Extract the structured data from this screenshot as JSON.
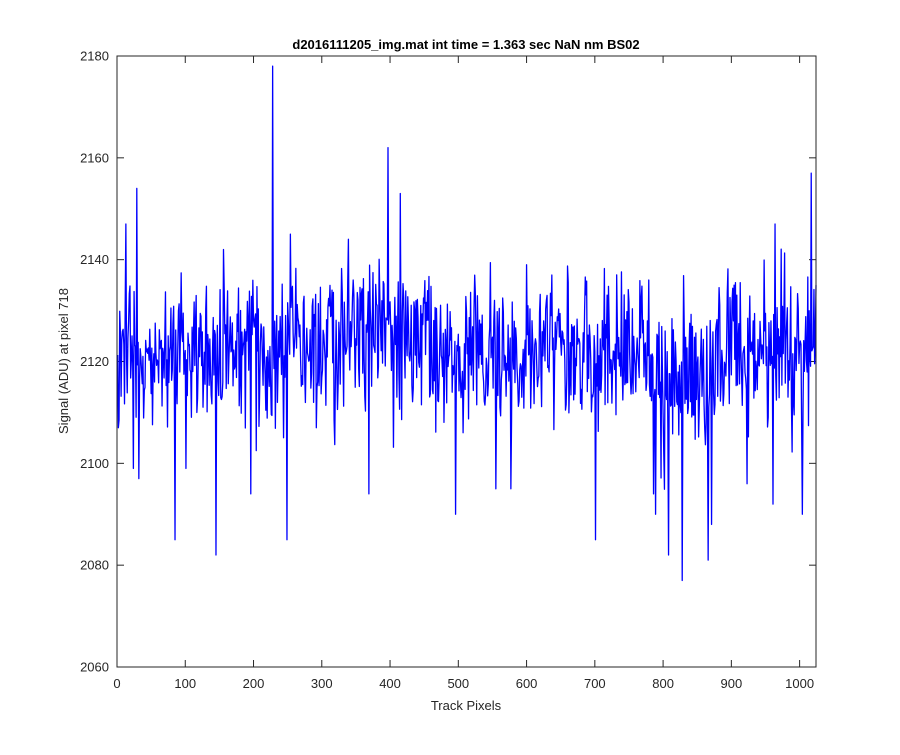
{
  "chart_data": {
    "type": "line",
    "title": "d2016111205_img.mat int time = 1.363 sec  NaN nm BS02",
    "xlabel": "Track Pixels",
    "ylabel": "Signal (ADU) at pixel 718",
    "xlim": [
      0,
      1024
    ],
    "ylim": [
      2060,
      2180
    ],
    "xticks": [
      0,
      100,
      200,
      300,
      400,
      500,
      600,
      700,
      800,
      900,
      1000
    ],
    "yticks": [
      2060,
      2080,
      2100,
      2120,
      2140,
      2160,
      2180
    ],
    "grid": false,
    "line_color": "#0000ff",
    "series": [
      {
        "x_start": 1,
        "x_step": 1,
        "summary": "dense noisy trace of 1024 samples, mean about 2121-2124 ADU, dipping to about 2118 near pixels 780-880",
        "notable_points": [
          {
            "x": 2,
            "y": 2107
          },
          {
            "x": 13,
            "y": 2147
          },
          {
            "x": 24,
            "y": 2099
          },
          {
            "x": 29,
            "y": 2154
          },
          {
            "x": 32,
            "y": 2097
          },
          {
            "x": 85,
            "y": 2085
          },
          {
            "x": 101,
            "y": 2099
          },
          {
            "x": 145,
            "y": 2082
          },
          {
            "x": 156,
            "y": 2142
          },
          {
            "x": 196,
            "y": 2094
          },
          {
            "x": 228,
            "y": 2178
          },
          {
            "x": 249,
            "y": 2085
          },
          {
            "x": 254,
            "y": 2145
          },
          {
            "x": 339,
            "y": 2144
          },
          {
            "x": 369,
            "y": 2094
          },
          {
            "x": 397,
            "y": 2162
          },
          {
            "x": 415,
            "y": 2153
          },
          {
            "x": 496,
            "y": 2090
          },
          {
            "x": 553,
            "y": 2132
          },
          {
            "x": 555,
            "y": 2095
          },
          {
            "x": 577,
            "y": 2095
          },
          {
            "x": 600,
            "y": 2139
          },
          {
            "x": 701,
            "y": 2085
          },
          {
            "x": 779,
            "y": 2136
          },
          {
            "x": 786,
            "y": 2094
          },
          {
            "x": 789,
            "y": 2090
          },
          {
            "x": 808,
            "y": 2082
          },
          {
            "x": 828,
            "y": 2077
          },
          {
            "x": 866,
            "y": 2081
          },
          {
            "x": 871,
            "y": 2088
          },
          {
            "x": 923,
            "y": 2096
          },
          {
            "x": 961,
            "y": 2092
          },
          {
            "x": 964,
            "y": 2147
          },
          {
            "x": 1004,
            "y": 2090
          },
          {
            "x": 1017,
            "y": 2157
          },
          {
            "x": 1024,
            "y": 2135
          }
        ]
      }
    ]
  }
}
